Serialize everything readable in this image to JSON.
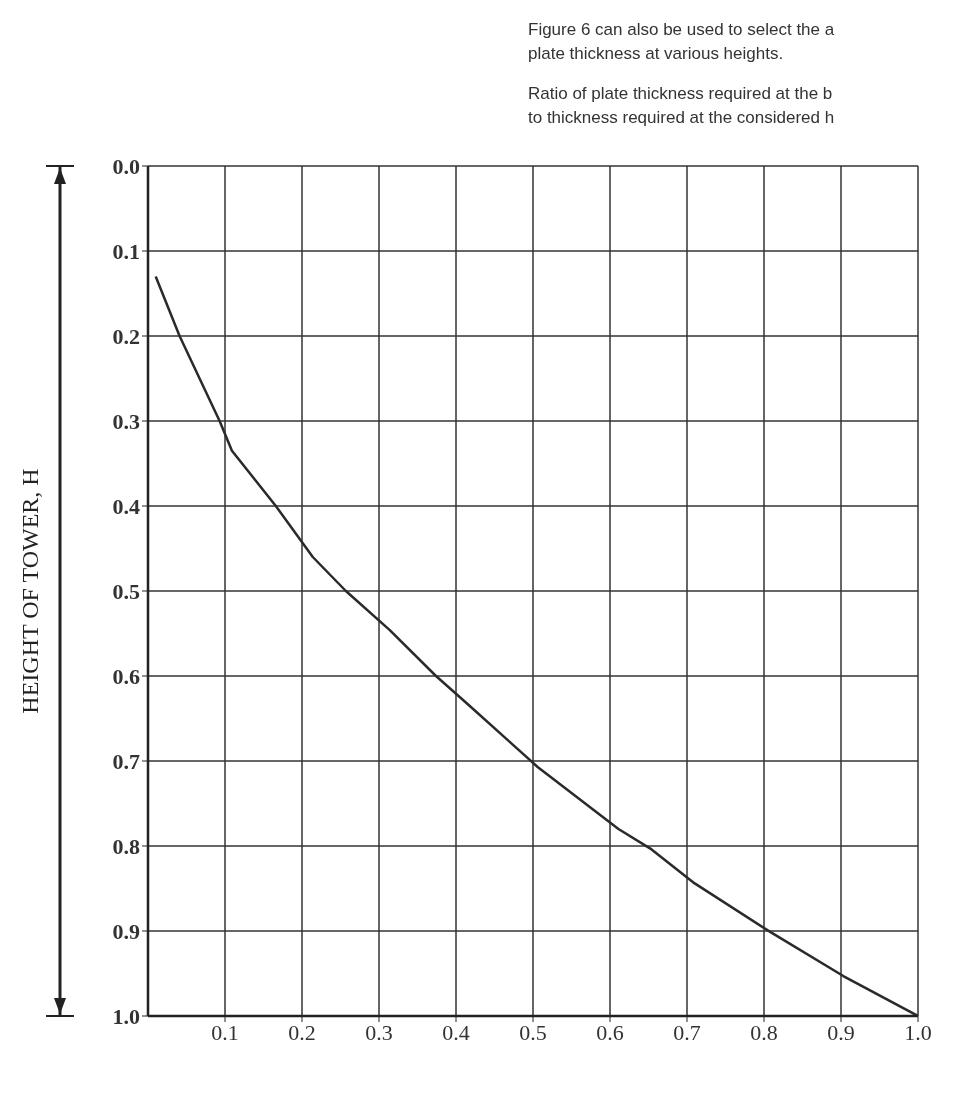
{
  "chart_data": {
    "type": "line",
    "ylabel": "HEIGHT OF TOWER, H",
    "annotations": [
      "Figure 6 can also be used to select the a",
      "plate thickness at various heights.",
      "Ratio of plate thickness required at the b",
      "to thickness required at the considered h"
    ],
    "series": [
      {
        "color": "#2a2a2a",
        "x": [
          0.01,
          0.041,
          0.093,
          0.109,
          0.166,
          0.214,
          0.257,
          0.314,
          0.374,
          0.415,
          0.506,
          0.611,
          0.654,
          0.71,
          0.808,
          0.903,
          1.0
        ],
        "values": [
          0.13,
          0.2,
          0.3,
          0.335,
          0.4,
          0.46,
          0.5,
          0.546,
          0.6,
          0.633,
          0.707,
          0.78,
          0.804,
          0.844,
          0.901,
          0.953,
          1.0
        ]
      }
    ],
    "xlim": [
      0,
      1
    ],
    "xticks": [
      0.1,
      0.2,
      0.3,
      0.4,
      0.5,
      0.6,
      0.7,
      0.8,
      0.9,
      {
        "value": 1,
        "label": "1.0"
      }
    ],
    "ylim": [
      1,
      0
    ],
    "yticks": [
      {
        "value": 0,
        "label": "0.0"
      },
      0.1,
      0.2,
      0.3,
      0.4,
      0.5,
      0.6,
      0.7,
      0.8,
      0.9,
      {
        "value": 1,
        "label": "1.0"
      }
    ],
    "grid": true,
    "marker": "none",
    "line_style": "solid",
    "legend": false
  }
}
